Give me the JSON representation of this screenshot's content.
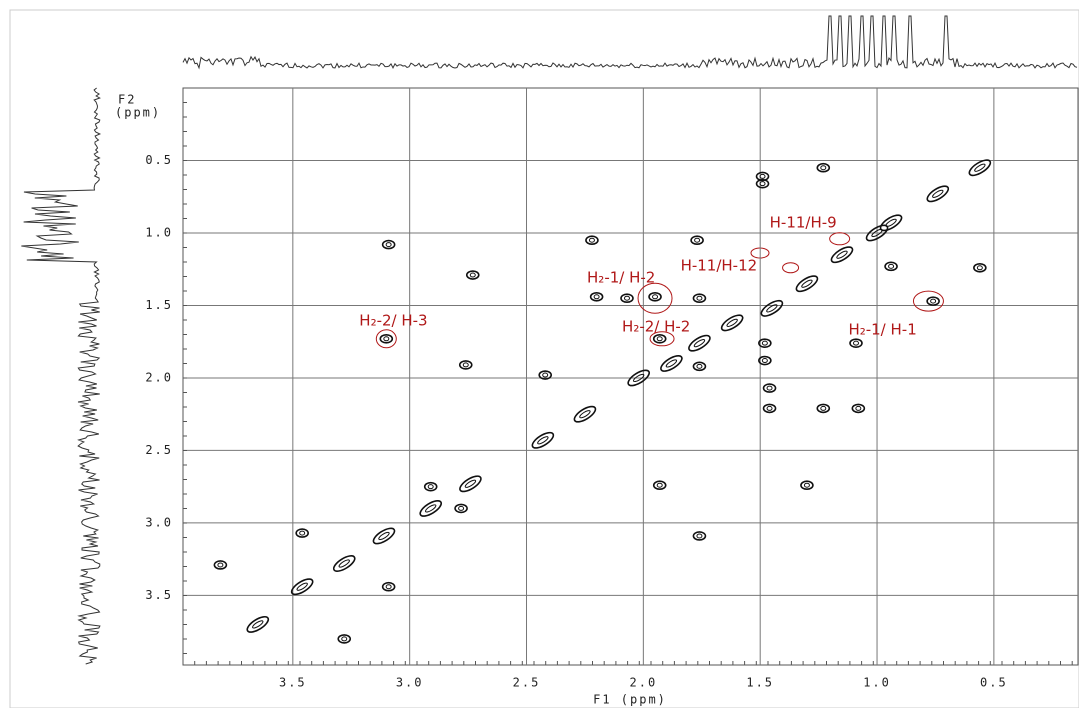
{
  "chart_data": {
    "type": "cosy",
    "xlabel": "F1 (ppm)",
    "ylabel": [
      "F2",
      "(ppm)"
    ],
    "xlim": [
      3.97,
      0.14
    ],
    "ylim": [
      0,
      3.98
    ],
    "xticks": [
      3.5,
      {
        "value": 3,
        "label": "3.0"
      },
      2.5,
      {
        "value": 2,
        "label": "2.0"
      },
      1.5,
      {
        "value": 1,
        "label": "1.0"
      },
      0.5
    ],
    "yticks": [
      0.5,
      {
        "value": 1,
        "label": "1.0"
      },
      1.5,
      {
        "value": 2,
        "label": "2.0"
      },
      2.5,
      {
        "value": 3,
        "label": "3.0"
      },
      3.5
    ],
    "grid": true,
    "series": [
      {
        "name": "cross peaks",
        "color": "#111",
        "x": [
          1.49,
          1.49,
          1.23,
          0.56,
          0.74,
          0.94,
          2.22,
          1.77,
          3.09,
          2.73,
          0.94,
          0.56,
          2.2,
          2.07,
          1.95,
          1.76,
          0.76,
          3.1,
          1.93,
          1.76,
          1.48,
          1.48,
          1.09,
          2.76,
          1.76,
          2.42,
          1.46,
          1.46,
          1.23,
          1.08,
          2.43,
          2.91,
          2.74,
          2.91,
          2.78,
          1.93,
          1.3,
          1.76,
          3.46,
          3.11,
          3.28,
          3.81,
          3.46,
          3.09,
          3.28,
          3.65,
          2.25,
          2.02,
          1.88,
          1.62,
          1.45,
          1.3,
          1.15,
          1.0
        ],
        "y": [
          0.61,
          0.66,
          0.55,
          0.55,
          0.73,
          0.93,
          1.05,
          1.05,
          1.08,
          1.29,
          1.23,
          1.24,
          1.44,
          1.45,
          1.44,
          1.45,
          1.47,
          1.73,
          1.73,
          1.76,
          1.76,
          1.88,
          1.76,
          1.91,
          1.92,
          1.98,
          2.07,
          2.21,
          2.21,
          2.21,
          2.43,
          2.75,
          2.73,
          2.9,
          2.9,
          2.74,
          2.74,
          3.09,
          3.07,
          3.09,
          3.28,
          3.29,
          3.44,
          3.44,
          3.8,
          3.7,
          2.25,
          2.0,
          1.9,
          1.62,
          1.52,
          1.35,
          1.15,
          1.0
        ]
      }
    ],
    "annotations": [
      {
        "text": "H₂-2/ H-3",
        "x": 3.1,
        "y": 1.73
      },
      {
        "text": "H₂-1/ H-2",
        "x": 1.95,
        "y": 1.45
      },
      {
        "text": "H₂-2/ H-2",
        "x": 1.92,
        "y": 1.73
      },
      {
        "text": "H-11/H-12",
        "x": 1.37,
        "y": 1.24
      },
      {
        "text": "H-11/H-9",
        "x": 1.16,
        "y": 1.04
      },
      {
        "text": "H₂-1/ H-1",
        "x": 0.78,
        "y": 1.47
      }
    ]
  }
}
